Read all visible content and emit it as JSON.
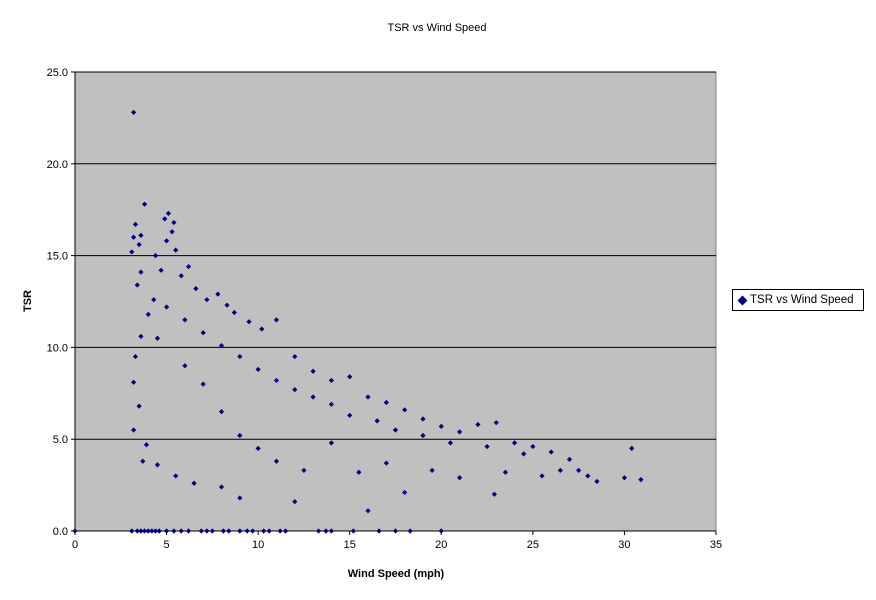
{
  "chart_data": {
    "type": "scatter",
    "title": "TSR vs Wind Speed",
    "xlabel": "Wind Speed (mph)",
    "ylabel": "TSR",
    "xlim": [
      0,
      35
    ],
    "ylim": [
      0,
      25
    ],
    "x_ticks": [
      "0",
      "5",
      "10",
      "15",
      "20",
      "25",
      "30",
      "35"
    ],
    "y_ticks": [
      "0.0",
      "5.0",
      "10.0",
      "15.0",
      "20.0",
      "25.0"
    ],
    "grid": "horizontal",
    "legend_position": "right",
    "plot_background": "#c0c0c0",
    "marker_color": "#000080",
    "marker_shape": "diamond",
    "series": [
      {
        "name": "TSR vs Wind Speed",
        "points": [
          [
            3.2,
            22.8
          ],
          [
            3.8,
            17.8
          ],
          [
            5.1,
            17.3
          ],
          [
            4.9,
            17.0
          ],
          [
            5.4,
            16.8
          ],
          [
            3.3,
            16.7
          ],
          [
            5.3,
            16.3
          ],
          [
            3.6,
            16.1
          ],
          [
            3.2,
            16.0
          ],
          [
            3.5,
            15.6
          ],
          [
            5.0,
            15.8
          ],
          [
            3.1,
            15.2
          ],
          [
            5.5,
            15.3
          ],
          [
            4.4,
            15.0
          ],
          [
            6.2,
            14.4
          ],
          [
            7.8,
            12.9
          ],
          [
            8.3,
            12.3
          ],
          [
            9.5,
            11.4
          ],
          [
            11.0,
            11.5
          ],
          [
            12.0,
            9.5
          ],
          [
            13.0,
            8.7
          ],
          [
            14.0,
            8.2
          ],
          [
            15.0,
            8.4
          ],
          [
            16.0,
            7.3
          ],
          [
            17.0,
            7.0
          ],
          [
            18.0,
            6.6
          ],
          [
            19.0,
            6.1
          ],
          [
            20.0,
            5.7
          ],
          [
            21.0,
            5.4
          ],
          [
            22.0,
            5.8
          ],
          [
            23.0,
            5.9
          ],
          [
            24.0,
            4.8
          ],
          [
            25.0,
            4.6
          ],
          [
            26.0,
            4.3
          ],
          [
            27.0,
            3.9
          ],
          [
            27.5,
            3.3
          ],
          [
            28.0,
            3.0
          ],
          [
            28.5,
            2.7
          ],
          [
            30.0,
            2.9
          ],
          [
            30.4,
            4.5
          ],
          [
            30.9,
            2.8
          ],
          [
            22.9,
            2.0
          ],
          [
            16.0,
            1.1
          ],
          [
            12.0,
            1.6
          ],
          [
            9.0,
            1.8
          ],
          [
            8.0,
            2.4
          ],
          [
            6.5,
            2.6
          ],
          [
            5.5,
            3.0
          ],
          [
            4.5,
            3.6
          ],
          [
            3.7,
            3.8
          ],
          [
            3.9,
            4.7
          ],
          [
            3.2,
            5.5
          ],
          [
            3.5,
            6.8
          ],
          [
            3.2,
            8.1
          ],
          [
            3.3,
            9.5
          ],
          [
            3.6,
            10.6
          ],
          [
            4.0,
            11.8
          ],
          [
            4.3,
            12.6
          ],
          [
            3.4,
            13.4
          ],
          [
            3.6,
            14.1
          ],
          [
            4.7,
            14.2
          ],
          [
            5.8,
            13.9
          ],
          [
            6.6,
            13.2
          ],
          [
            7.2,
            12.6
          ],
          [
            8.7,
            11.9
          ],
          [
            10.2,
            11.0
          ],
          [
            6.0,
            9.0
          ],
          [
            7.0,
            8.0
          ],
          [
            8.0,
            6.5
          ],
          [
            9.0,
            5.2
          ],
          [
            10.0,
            4.5
          ],
          [
            11.0,
            3.8
          ],
          [
            12.5,
            3.3
          ],
          [
            14.0,
            4.8
          ],
          [
            15.5,
            3.2
          ],
          [
            17.0,
            3.7
          ],
          [
            18.0,
            2.1
          ],
          [
            19.5,
            3.3
          ],
          [
            21.0,
            2.9
          ],
          [
            23.5,
            3.2
          ],
          [
            25.5,
            3.0
          ],
          [
            26.5,
            3.3
          ],
          [
            24.5,
            4.2
          ],
          [
            22.5,
            4.6
          ],
          [
            20.5,
            4.8
          ],
          [
            19.0,
            5.2
          ],
          [
            17.5,
            5.5
          ],
          [
            16.5,
            6.0
          ],
          [
            15.0,
            6.3
          ],
          [
            14.0,
            6.9
          ],
          [
            13.0,
            7.3
          ],
          [
            12.0,
            7.7
          ],
          [
            11.0,
            8.2
          ],
          [
            10.0,
            8.8
          ],
          [
            9.0,
            9.5
          ],
          [
            8.0,
            10.1
          ],
          [
            7.0,
            10.8
          ],
          [
            6.0,
            11.5
          ],
          [
            5.0,
            12.2
          ],
          [
            4.5,
            10.5
          ],
          [
            0.0,
            0.0
          ],
          [
            3.1,
            0.0
          ],
          [
            3.4,
            0.0
          ],
          [
            3.6,
            0.0
          ],
          [
            3.8,
            0.0
          ],
          [
            4.0,
            0.0
          ],
          [
            4.2,
            0.0
          ],
          [
            4.4,
            0.0
          ],
          [
            4.6,
            0.0
          ],
          [
            5.0,
            0.0
          ],
          [
            5.4,
            0.0
          ],
          [
            5.8,
            0.0
          ],
          [
            6.2,
            0.0
          ],
          [
            6.9,
            0.0
          ],
          [
            7.2,
            0.0
          ],
          [
            7.5,
            0.0
          ],
          [
            8.1,
            0.0
          ],
          [
            8.4,
            0.0
          ],
          [
            9.0,
            0.0
          ],
          [
            9.4,
            0.0
          ],
          [
            9.7,
            0.0
          ],
          [
            10.3,
            0.0
          ],
          [
            10.6,
            0.0
          ],
          [
            11.2,
            0.0
          ],
          [
            11.5,
            0.0
          ],
          [
            13.3,
            0.0
          ],
          [
            13.7,
            0.0
          ],
          [
            14.0,
            0.0
          ],
          [
            15.2,
            0.0
          ],
          [
            16.6,
            0.0
          ],
          [
            17.5,
            0.0
          ],
          [
            18.3,
            0.0
          ],
          [
            20.0,
            0.0
          ]
        ]
      }
    ]
  }
}
